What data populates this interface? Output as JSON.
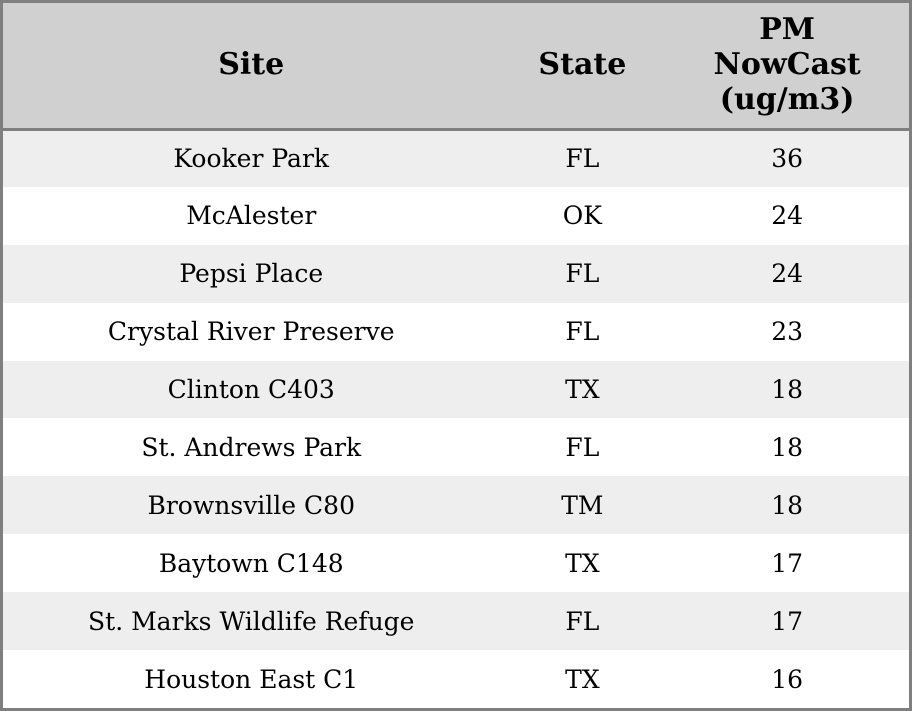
{
  "chart_data": {
    "type": "table",
    "columns": [
      "Site",
      "State",
      "PM NowCast (ug/m3)"
    ],
    "rows": [
      [
        "Kooker Park",
        "FL",
        36
      ],
      [
        "McAlester",
        "OK",
        24
      ],
      [
        "Pepsi Place",
        "FL",
        24
      ],
      [
        "Crystal River Preserve",
        "FL",
        23
      ],
      [
        "Clinton C403",
        "TX",
        18
      ],
      [
        "St. Andrews Park",
        "FL",
        18
      ],
      [
        "Brownsville C80",
        "TM",
        18
      ],
      [
        "Baytown C148",
        "TX",
        17
      ],
      [
        "St. Marks Wildlife Refuge",
        "FL",
        17
      ],
      [
        "Houston East C1",
        "TX",
        16
      ]
    ],
    "layout": {
      "header_align": "center",
      "cell_align": "center",
      "zebra_striping": true,
      "grid": "outer-border-and-header-rule-only"
    }
  },
  "colors": {
    "header_bg": "#d0d0d0",
    "row_alt_bg": "#eeeeee",
    "row_bg": "#ffffff",
    "border": "#7f7f7f",
    "text": "#000000"
  }
}
